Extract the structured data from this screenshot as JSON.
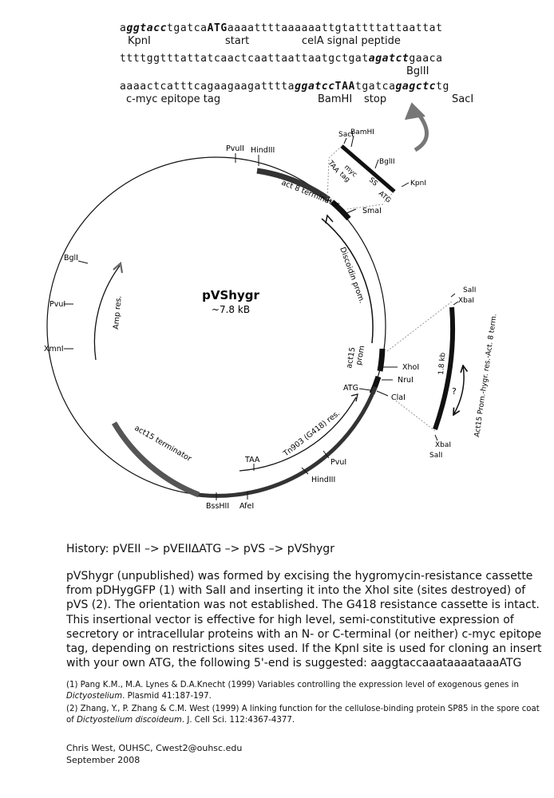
{
  "sequence": {
    "line1": {
      "a": "a",
      "kpnI": "ggtacc",
      "b": "tgatca",
      "atg": "ATG",
      "c": "aaaattttaaaaaattgtattttattaattat"
    },
    "line1_labels": {
      "kpnI": "KpnI",
      "start": "start",
      "signal": "celA signal peptide"
    },
    "line2": {
      "a": "ttttggtttattatcaactcaattaattaatgctgat",
      "bglII": "agatct",
      "b": "gaaca"
    },
    "line2_labels": {
      "bglII": "BglII"
    },
    "line3": {
      "a": "aaaactcatttcagaagaagatttta",
      "bamHI": "ggatcc",
      "taa": "TAA",
      "b": "tgatca",
      "sacI": "gagctc",
      "c": "tg"
    },
    "line3_labels": {
      "cmyc": "c-myc epitope tag",
      "bamHI": "BamHI",
      "stop": "stop",
      "sacI": "SacI"
    }
  },
  "plasmid": {
    "name": "pVShygr",
    "size": "~7.8 kB",
    "sites": {
      "pvuII": "PvuII",
      "hindIII_top": "HindIII",
      "smaI": "SmaI",
      "bglI": "BglI",
      "pvuI_left": "PvuI",
      "xmnI": "XmnI",
      "xhoI": "XhoI",
      "nruI": "NruI",
      "claI": "ClaI",
      "atg": "ATG",
      "taa": "TAA",
      "pvuI_bottom": "PvuI",
      "hindIII_bottom": "HindIII",
      "afeI": "AfeI",
      "bssHII": "BssHII"
    },
    "features": {
      "act8_terminator": "act 8 terminator",
      "discoidin_prom": "Discoidin prom.",
      "amp_res": "Amp res.",
      "act15_prom_line1": "act15",
      "act15_prom_line2": "prom",
      "tn903": "Tn903 (G418) res.",
      "act15_terminator": "act15 terminator"
    }
  },
  "top_insert": {
    "sites": {
      "sacI": "SacI",
      "bamHI": "BamHI",
      "bglII": "BglII",
      "kpnI": "KpnI"
    },
    "labels": {
      "taa": "TAA",
      "myc_line1": "myc",
      "myc_line2": "tag",
      "ss": "SS",
      "atg": "ATG"
    }
  },
  "right_insert": {
    "sites": {
      "salI_top": "SalI",
      "xbaI_top": "XbaI",
      "xbaI_bottom": "XbaI",
      "salI_bottom": "SalI"
    },
    "labels": {
      "size": "1.8 kb",
      "unknown": "?",
      "cassette": "Act15 Prom.-hygr. res.-Act. 8 term."
    }
  },
  "text": {
    "history": "History: pVEII –> pVEIIΔATG –> pVS –> pVShygr",
    "description": "pVShygr (unpublished) was formed by excising the hygromycin-resistance cassette from pDHygGFP (1) with SalI and inserting it into the XhoI site (sites destroyed) of pVS (2). The orientation was not established. The G418 resistance cassette is intact. This insertional vector is effective for high level, semi-constitutive expression of secretory or intracellular proteins with an N- or C-terminal (or neither) c-myc epitope tag, depending on restrictions sites used. If the KpnI site is used for cloning an insert with your own ATG, the following 5'-end is suggested: aaggtaccaaataaaataaaATG",
    "ref1_pre": "(1) Pang K.M., M.A. Lynes & D.A.Knecht (1999) Variables controlling the expression level of exogenous genes in ",
    "ref1_italic": "Dictyostelium",
    "ref1_post": ". Plasmid 41:187-197.",
    "ref2_pre": "(2) Zhang, Y., P. Zhang & C.M. West (1999) A linking function for the cellulose-binding protein SP85 in the spore coat of ",
    "ref2_italic": "Dictyostelium discoideum",
    "ref2_post": ". J. Cell Sci. 112:4367-4377.",
    "author": "Chris West, OUHSC, Cwest2@ouhsc.edu",
    "date": "September 2008"
  }
}
